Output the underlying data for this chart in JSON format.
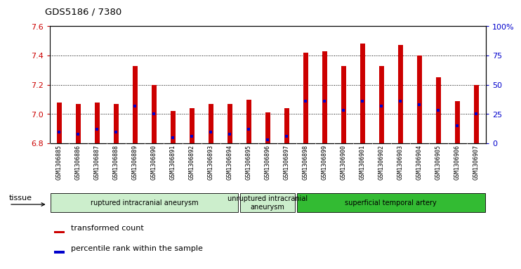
{
  "title": "GDS5186 / 7380",
  "samples": [
    "GSM1306885",
    "GSM1306886",
    "GSM1306887",
    "GSM1306888",
    "GSM1306889",
    "GSM1306890",
    "GSM1306891",
    "GSM1306892",
    "GSM1306893",
    "GSM1306894",
    "GSM1306895",
    "GSM1306896",
    "GSM1306897",
    "GSM1306898",
    "GSM1306899",
    "GSM1306900",
    "GSM1306901",
    "GSM1306902",
    "GSM1306903",
    "GSM1306904",
    "GSM1306905",
    "GSM1306906",
    "GSM1306907"
  ],
  "transformed_count": [
    7.08,
    7.07,
    7.08,
    7.07,
    7.33,
    7.2,
    7.02,
    7.04,
    7.07,
    7.07,
    7.1,
    7.01,
    7.04,
    7.42,
    7.43,
    7.33,
    7.48,
    7.33,
    7.47,
    7.4,
    7.25,
    7.09,
    7.2
  ],
  "percentile_rank": [
    10,
    8,
    12,
    10,
    32,
    25,
    5,
    6,
    10,
    8,
    12,
    3,
    6,
    36,
    36,
    28,
    36,
    32,
    36,
    33,
    28,
    15,
    25
  ],
  "y_min": 6.8,
  "y_max": 7.6,
  "y_ticks": [
    6.8,
    7.0,
    7.2,
    7.4,
    7.6
  ],
  "y2_ticks": [
    0,
    25,
    50,
    75,
    100
  ],
  "bar_color": "#cc0000",
  "blue_color": "#0000cc",
  "tick_bg_color": "#d0d0d0",
  "group_configs": [
    {
      "start": 0,
      "end": 9,
      "label": "ruptured intracranial aneurysm",
      "color": "#cceecc"
    },
    {
      "start": 10,
      "end": 12,
      "label": "unruptured intracranial\naneurysm",
      "color": "#cceecc"
    },
    {
      "start": 13,
      "end": 22,
      "label": "superficial temporal artery",
      "color": "#33bb33"
    }
  ],
  "tissue_label": "tissue",
  "legend": [
    {
      "color": "#cc0000",
      "label": "transformed count"
    },
    {
      "color": "#0000cc",
      "label": "percentile rank within the sample"
    }
  ]
}
